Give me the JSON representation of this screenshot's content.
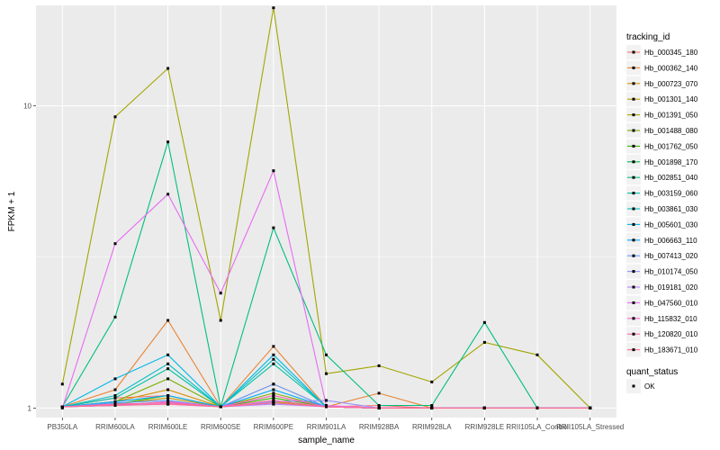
{
  "chart_data": {
    "type": "line",
    "title": "",
    "xlabel": "sample_name",
    "ylabel": "FPKM + 1",
    "yscale": "log10",
    "ylim": [
      0.93,
      21.5
    ],
    "y_ticks": [
      1,
      10
    ],
    "y_tick_labels": [
      "1",
      "10"
    ],
    "grid": true,
    "legend_position": "right",
    "categories": [
      "PB350LA",
      "RRIM600LA",
      "RRIM600LE",
      "RRIM600SE",
      "RRIM600PE",
      "RRIM901LA",
      "RRIM928BA",
      "RRIM928LA",
      "RRIM928LE",
      "RRII105LA_Control",
      "RRII105LA_Stressed"
    ],
    "x_tick_labels": [
      "PB350LA",
      "RRIM600LA",
      "RRIM600LE",
      "RRIM600SE",
      "RRIM600PE",
      "RRIM901LA",
      "RRIM928BA",
      "RRIM928LA",
      "RRIM928LE",
      "RRII105LA_Control",
      "RRII105LA_Stressed"
    ],
    "legend_title": "tracking_id",
    "series": [
      {
        "name": "Hb_000345_180",
        "color": "#F8766D",
        "values": [
          1.01,
          1.08,
          1.1,
          1.01,
          1.2,
          1.01,
          1.02,
          1,
          1,
          1,
          1
        ]
      },
      {
        "name": "Hb_000362_140",
        "color": "#EA8331",
        "values": [
          1.01,
          1.15,
          1.95,
          1.01,
          1.6,
          1.01,
          1.12,
          1,
          1,
          1,
          1
        ]
      },
      {
        "name": "Hb_000723_070",
        "color": "#D89000",
        "values": [
          1.01,
          1.05,
          1.15,
          1.01,
          1.1,
          1.01,
          1,
          1,
          1,
          1,
          1
        ]
      },
      {
        "name": "Hb_001301_140",
        "color": "#C09B00",
        "values": [
          1.01,
          1.03,
          1.08,
          1.01,
          1.05,
          1.01,
          1,
          1,
          1,
          1,
          1
        ]
      },
      {
        "name": "Hb_001391_050",
        "color": "#A3A500",
        "values": [
          1.2,
          9.2,
          13.3,
          1.95,
          21.1,
          1.3,
          1.38,
          1.22,
          1.65,
          1.5,
          1
        ]
      },
      {
        "name": "Hb_001488_080",
        "color": "#7CAE00",
        "values": [
          1.01,
          1.05,
          1.25,
          1.01,
          1.12,
          1.01,
          1,
          1,
          1,
          1,
          1
        ]
      },
      {
        "name": "Hb_001762_050",
        "color": "#39B600",
        "values": [
          1.01,
          1.03,
          1.1,
          1.01,
          1.08,
          1.01,
          1,
          1,
          1,
          1,
          1
        ]
      },
      {
        "name": "Hb_001898_170",
        "color": "#00BB4E",
        "values": [
          1.01,
          1.02,
          1.05,
          1.01,
          1.04,
          1.01,
          1,
          1,
          1,
          1,
          1
        ]
      },
      {
        "name": "Hb_002851_040",
        "color": "#00BF7D",
        "values": [
          1.01,
          2.0,
          7.6,
          1.01,
          3.95,
          1.5,
          1.02,
          1.02,
          1.92,
          1,
          1
        ]
      },
      {
        "name": "Hb_003159_060",
        "color": "#00C1A3",
        "values": [
          1.01,
          1.08,
          1.35,
          1.01,
          1.4,
          1.01,
          1,
          1,
          1,
          1,
          1
        ]
      },
      {
        "name": "Hb_003861_030",
        "color": "#00BFC4",
        "values": [
          1.01,
          1.1,
          1.4,
          1.01,
          1.45,
          1.01,
          1,
          1,
          1,
          1,
          1
        ]
      },
      {
        "name": "Hb_005601_030",
        "color": "#00B8E7",
        "values": [
          1.01,
          1.25,
          1.5,
          1.01,
          1.5,
          1.01,
          1,
          1,
          1,
          1,
          1
        ]
      },
      {
        "name": "Hb_006663_110",
        "color": "#00A9FF",
        "values": [
          1.01,
          1.05,
          1.1,
          1.01,
          1.15,
          1.01,
          1,
          1,
          1,
          1,
          1
        ]
      },
      {
        "name": "Hb_007413_020",
        "color": "#619CFF",
        "values": [
          1.01,
          1.04,
          1.06,
          1.01,
          1.2,
          1.01,
          1,
          1,
          1,
          1,
          1
        ]
      },
      {
        "name": "Hb_010174_050",
        "color": "#9590FF",
        "values": [
          1.01,
          1.03,
          1.04,
          1.01,
          1.05,
          1.06,
          1,
          1,
          1,
          1,
          1
        ]
      },
      {
        "name": "Hb_019181_020",
        "color": "#B983FF",
        "values": [
          1.01,
          1.02,
          1.03,
          1.01,
          1.03,
          1.01,
          1,
          1,
          1,
          1,
          1
        ]
      },
      {
        "name": "Hb_047560_010",
        "color": "#E76BF3",
        "values": [
          1,
          3.5,
          5.1,
          2.4,
          6.1,
          1.02,
          1,
          1,
          1,
          1,
          1
        ]
      },
      {
        "name": "Hb_115832_010",
        "color": "#FD61D1",
        "values": [
          1.01,
          1.02,
          1.05,
          1.01,
          1.1,
          1.01,
          1,
          1,
          1,
          1,
          1
        ]
      },
      {
        "name": "Hb_120820_010",
        "color": "#FF67A4",
        "values": [
          1.01,
          1.03,
          1.04,
          1.01,
          1.06,
          1.01,
          1,
          1,
          1,
          1,
          1
        ]
      },
      {
        "name": "Hb_183671_010",
        "color": "#FF6C91",
        "values": [
          1.01,
          1.02,
          1.03,
          1.01,
          1.04,
          1.01,
          1,
          1,
          1,
          1,
          1
        ]
      }
    ],
    "shape_legend": {
      "title": "quant_status",
      "entries": [
        "OK"
      ]
    }
  }
}
